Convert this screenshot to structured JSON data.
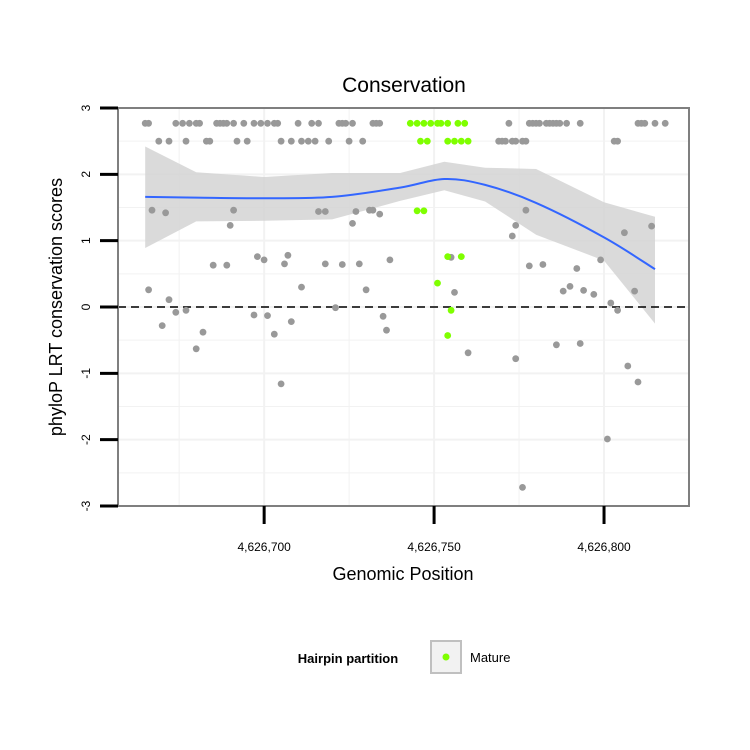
{
  "chart_data": {
    "type": "scatter",
    "title": "Conservation",
    "xlabel": "Genomic Position",
    "ylabel": "phyloP LRT conservation scores",
    "xlim": [
      4626657,
      4626825
    ],
    "ylim": [
      -3,
      3
    ],
    "xticks": [
      4626700,
      4626750,
      4626800
    ],
    "xtick_labels": [
      "4,626,700",
      "4,626,750",
      "4,626,800"
    ],
    "yticks": [
      -3,
      -2,
      -1,
      0,
      1,
      2,
      3
    ],
    "ytick_labels": [
      "-3",
      "-2",
      "-1",
      "0",
      "1",
      "2",
      "3"
    ],
    "grid": true,
    "reference_line": {
      "y": 0,
      "style": "dashed"
    },
    "colors": {
      "other": "#999999",
      "mature": "#7fff00",
      "smooth": "#3366ff",
      "band": "#d3d3d3",
      "panel_border": "#7f7f7f",
      "grid": "#f2f2f2"
    },
    "legend": {
      "title": "Hairpin partition",
      "position": "bottom",
      "items": [
        {
          "label": "Mature",
          "color": "#7fff00"
        }
      ]
    },
    "series": [
      {
        "group": "other",
        "points": [
          [
            4626665,
            2.77
          ],
          [
            4626666,
            2.77
          ],
          [
            4626669,
            2.5
          ],
          [
            4626672,
            2.5
          ],
          [
            4626674,
            2.77
          ],
          [
            4626676,
            2.77
          ],
          [
            4626677,
            2.5
          ],
          [
            4626678,
            2.77
          ],
          [
            4626680,
            2.77
          ],
          [
            4626681,
            2.77
          ],
          [
            4626683,
            2.5
          ],
          [
            4626684,
            2.5
          ],
          [
            4626686,
            2.77
          ],
          [
            4626687,
            2.77
          ],
          [
            4626688,
            2.77
          ],
          [
            4626689,
            2.77
          ],
          [
            4626691,
            2.77
          ],
          [
            4626692,
            2.5
          ],
          [
            4626694,
            2.77
          ],
          [
            4626695,
            2.5
          ],
          [
            4626697,
            2.77
          ],
          [
            4626699,
            2.77
          ],
          [
            4626701,
            2.77
          ],
          [
            4626703,
            2.77
          ],
          [
            4626704,
            2.77
          ],
          [
            4626705,
            2.5
          ],
          [
            4626708,
            2.5
          ],
          [
            4626710,
            2.77
          ],
          [
            4626711,
            2.5
          ],
          [
            4626713,
            2.5
          ],
          [
            4626714,
            2.77
          ],
          [
            4626715,
            2.5
          ],
          [
            4626716,
            2.77
          ],
          [
            4626719,
            2.5
          ],
          [
            4626722,
            2.77
          ],
          [
            4626723,
            2.77
          ],
          [
            4626724,
            2.77
          ],
          [
            4626725,
            2.5
          ],
          [
            4626726,
            2.77
          ],
          [
            4626729,
            2.5
          ],
          [
            4626732,
            2.77
          ],
          [
            4626733,
            2.77
          ],
          [
            4626734,
            2.77
          ],
          [
            4626769,
            2.5
          ],
          [
            4626770,
            2.5
          ],
          [
            4626771,
            2.5
          ],
          [
            4626772,
            2.77
          ],
          [
            4626773,
            2.5
          ],
          [
            4626774,
            2.5
          ],
          [
            4626776,
            2.5
          ],
          [
            4626777,
            2.5
          ],
          [
            4626778,
            2.77
          ],
          [
            4626779,
            2.77
          ],
          [
            4626780,
            2.77
          ],
          [
            4626781,
            2.77
          ],
          [
            4626783,
            2.77
          ],
          [
            4626784,
            2.77
          ],
          [
            4626785,
            2.77
          ],
          [
            4626786,
            2.77
          ],
          [
            4626787,
            2.77
          ],
          [
            4626789,
            2.77
          ],
          [
            4626793,
            2.77
          ],
          [
            4626803,
            2.5
          ],
          [
            4626804,
            2.5
          ],
          [
            4626810,
            2.77
          ],
          [
            4626811,
            2.77
          ],
          [
            4626812,
            2.77
          ],
          [
            4626815,
            2.77
          ],
          [
            4626818,
            2.77
          ],
          [
            4626667,
            1.46
          ],
          [
            4626671,
            1.42
          ],
          [
            4626690,
            1.23
          ],
          [
            4626691,
            1.46
          ],
          [
            4626716,
            1.44
          ],
          [
            4626718,
            1.44
          ],
          [
            4626726,
            1.26
          ],
          [
            4626727,
            1.44
          ],
          [
            4626731,
            1.46
          ],
          [
            4626732,
            1.46
          ],
          [
            4626734,
            1.4
          ],
          [
            4626773,
            1.07
          ],
          [
            4626774,
            1.23
          ],
          [
            4626777,
            1.46
          ],
          [
            4626799,
            0.71
          ],
          [
            4626806,
            1.12
          ],
          [
            4626814,
            1.22
          ],
          [
            4626685,
            0.63
          ],
          [
            4626689,
            0.63
          ],
          [
            4626698,
            0.76
          ],
          [
            4626700,
            0.71
          ],
          [
            4626706,
            0.65
          ],
          [
            4626707,
            0.78
          ],
          [
            4626711,
            0.3
          ],
          [
            4626718,
            0.65
          ],
          [
            4626723,
            0.64
          ],
          [
            4626728,
            0.65
          ],
          [
            4626730,
            0.26
          ],
          [
            4626737,
            0.71
          ],
          [
            4626755,
            0.75
          ],
          [
            4626756,
            0.22
          ],
          [
            4626778,
            0.62
          ],
          [
            4626782,
            0.64
          ],
          [
            4626788,
            0.24
          ],
          [
            4626790,
            0.31
          ],
          [
            4626792,
            0.58
          ],
          [
            4626794,
            0.25
          ],
          [
            4626797,
            0.19
          ],
          [
            4626809,
            0.24
          ],
          [
            4626666,
            0.26
          ],
          [
            4626670,
            -0.28
          ],
          [
            4626672,
            0.11
          ],
          [
            4626674,
            -0.08
          ],
          [
            4626677,
            -0.05
          ],
          [
            4626680,
            -0.63
          ],
          [
            4626682,
            -0.38
          ],
          [
            4626697,
            -0.12
          ],
          [
            4626701,
            -0.13
          ],
          [
            4626703,
            -0.41
          ],
          [
            4626705,
            -1.16
          ],
          [
            4626708,
            -0.22
          ],
          [
            4626721,
            -0.01
          ],
          [
            4626735,
            -0.14
          ],
          [
            4626736,
            -0.35
          ],
          [
            4626760,
            -0.69
          ],
          [
            4626774,
            -0.78
          ],
          [
            4626776,
            -2.72
          ],
          [
            4626786,
            -0.57
          ],
          [
            4626793,
            -0.55
          ],
          [
            4626801,
            -1.99
          ],
          [
            4626802,
            0.06
          ],
          [
            4626804,
            -0.05
          ],
          [
            4626807,
            -0.89
          ],
          [
            4626810,
            -1.13
          ]
        ]
      },
      {
        "group": "mature",
        "name": "Mature",
        "points": [
          [
            4626743,
            2.77
          ],
          [
            4626745,
            2.77
          ],
          [
            4626747,
            2.77
          ],
          [
            4626749,
            2.77
          ],
          [
            4626751,
            2.77
          ],
          [
            4626752,
            2.77
          ],
          [
            4626754,
            2.77
          ],
          [
            4626757,
            2.77
          ],
          [
            4626759,
            2.77
          ],
          [
            4626746,
            2.5
          ],
          [
            4626748,
            2.5
          ],
          [
            4626754,
            2.5
          ],
          [
            4626756,
            2.5
          ],
          [
            4626758,
            2.5
          ],
          [
            4626760,
            2.5
          ],
          [
            4626745,
            1.45
          ],
          [
            4626747,
            1.45
          ],
          [
            4626754,
            0.76
          ],
          [
            4626758,
            0.76
          ],
          [
            4626751,
            0.36
          ],
          [
            4626755,
            -0.05
          ],
          [
            4626754,
            -0.43
          ]
        ]
      }
    ],
    "smooth": {
      "method": "loess",
      "x": [
        4626665,
        4626680,
        4626700,
        4626720,
        4626740,
        4626753,
        4626765,
        4626780,
        4626800,
        4626815
      ],
      "y": [
        1.66,
        1.65,
        1.64,
        1.66,
        1.8,
        1.93,
        1.84,
        1.57,
        1.05,
        0.57
      ],
      "lower": [
        0.89,
        1.29,
        1.3,
        1.32,
        1.6,
        1.76,
        1.59,
        1.09,
        0.7,
        -0.25
      ],
      "upper": [
        2.42,
        2.03,
        1.96,
        2.02,
        2.02,
        2.19,
        2.1,
        2.08,
        1.58,
        1.36
      ]
    }
  }
}
